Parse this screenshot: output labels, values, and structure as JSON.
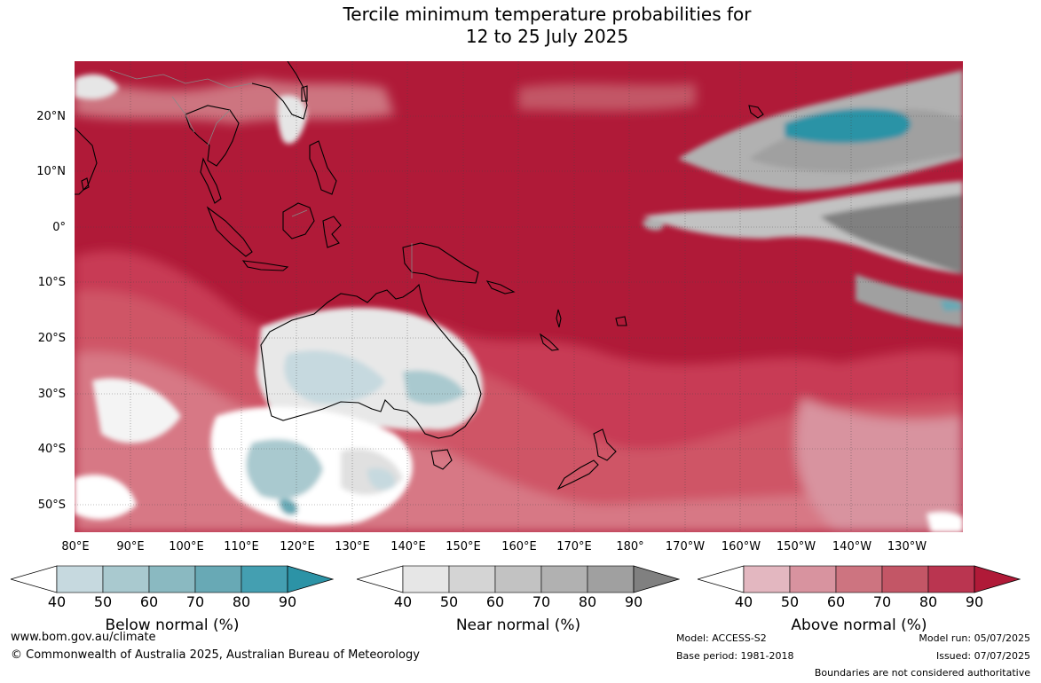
{
  "title": {
    "line1": "Tercile minimum temperature probabilities for",
    "line2": "12 to 25 July 2025"
  },
  "map": {
    "lat_labels": [
      "20°N",
      "10°N",
      "0°",
      "10°S",
      "20°S",
      "30°S",
      "40°S",
      "50°S"
    ],
    "lon_labels": [
      "80°E",
      "90°E",
      "100°E",
      "110°E",
      "120°E",
      "130°E",
      "140°E",
      "150°E",
      "160°E",
      "170°E",
      "180°",
      "170°W",
      "160°W",
      "150°W",
      "140°W",
      "130°W"
    ],
    "extent": {
      "lon_min": 80,
      "lon_max": 240,
      "lat_min": -55,
      "lat_max": 30
    },
    "dominant_category": "Above normal 90%",
    "colors": {
      "above_90": "#b01a38",
      "ocean_gridline": "#555555",
      "coastline": "#000000",
      "borders": "#888888"
    }
  },
  "colorbars": [
    {
      "caption": "Below normal (%)",
      "ticks": [
        "40",
        "50",
        "60",
        "70",
        "80",
        "90"
      ],
      "colors": [
        "#ffffff",
        "#c6d9df",
        "#a9c9cf",
        "#8ab9c1",
        "#68a9b5",
        "#449fb1",
        "#2c93a6"
      ]
    },
    {
      "caption": "Near normal (%)",
      "ticks": [
        "40",
        "50",
        "60",
        "70",
        "80",
        "90"
      ],
      "colors": [
        "#ffffff",
        "#e6e6e6",
        "#d4d4d4",
        "#c2c2c2",
        "#b1b1b1",
        "#a0a0a0",
        "#808080"
      ]
    },
    {
      "caption": "Above normal (%)",
      "ticks": [
        "40",
        "50",
        "60",
        "70",
        "80",
        "90"
      ],
      "colors": [
        "#ffffff",
        "#e3b7c0",
        "#d8939f",
        "#cd7480",
        "#c35666",
        "#ba3550",
        "#b01a38"
      ]
    }
  ],
  "footer": {
    "website": "www.bom.gov.au/climate",
    "copyright": "© Commonwealth of Australia 2025, Australian Bureau of Meteorology",
    "model": "Model: ACCESS-S2",
    "base_period": "Base period: 1981-2018",
    "model_run": "Model run: 05/07/2025",
    "issued": "Issued: 07/07/2025",
    "disclaimer": "Boundaries are not considered authoritative"
  }
}
